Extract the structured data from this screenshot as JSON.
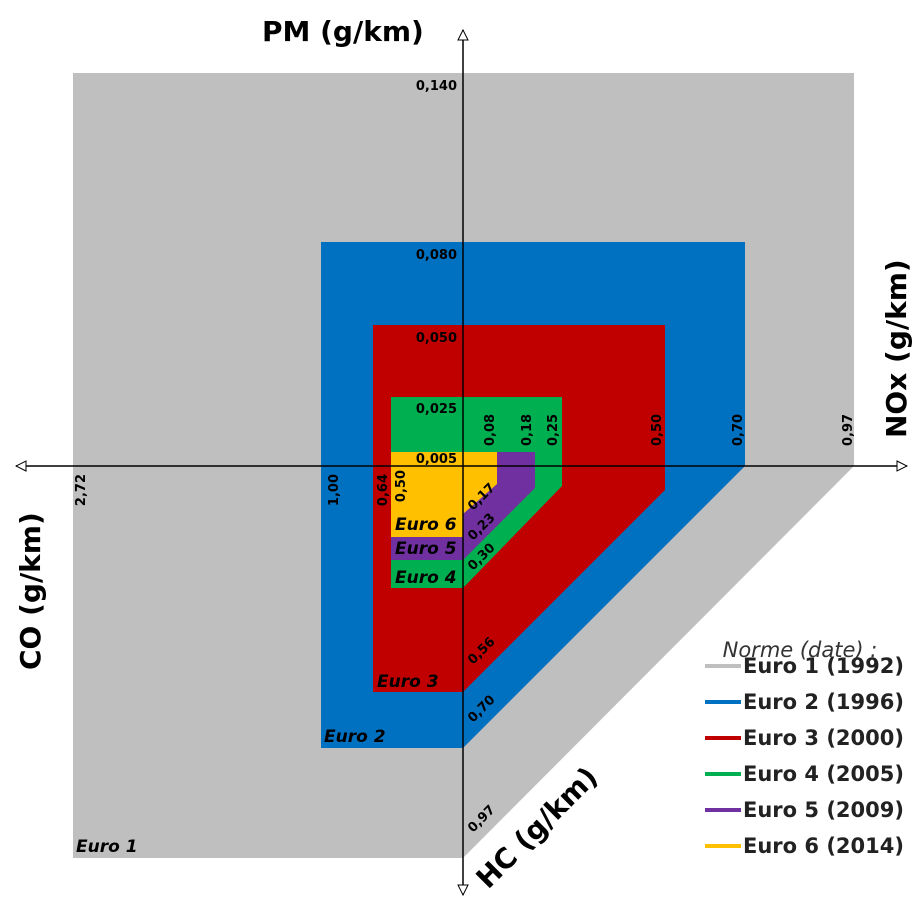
{
  "axes": {
    "pm": {
      "title": "PM (g/km)"
    },
    "nox": {
      "title": "NOx (g/km)"
    },
    "co": {
      "title": "CO (g/km)"
    },
    "hc": {
      "title": "HC (g/km)"
    }
  },
  "chart_data": {
    "type": "radar",
    "norms": [
      {
        "name": "Euro 1",
        "date": "1992",
        "color": "#bfbfbf",
        "values": {
          "pm": "0,140",
          "nox": "0,97",
          "co": "2,72",
          "hc": "0,97"
        }
      },
      {
        "name": "Euro 2",
        "date": "1996",
        "color": "#0070c0",
        "values": {
          "pm": "0,080",
          "nox": "0,70",
          "co": "1,00",
          "hc": "0,70"
        }
      },
      {
        "name": "Euro 3",
        "date": "2000",
        "color": "#c00000",
        "values": {
          "pm": "0,050",
          "nox": "0,50",
          "co": "0,64",
          "hc": "0,56"
        }
      },
      {
        "name": "Euro 4",
        "date": "2005",
        "color": "#00b050",
        "values": {
          "pm": "0,025",
          "nox": "0,25",
          "co": "0,50",
          "hc": "0,30"
        }
      },
      {
        "name": "Euro 5",
        "date": "2009",
        "color": "#7030a0",
        "values": {
          "pm": "0,005",
          "nox": "0,18",
          "co": "0,50",
          "hc": "0,23"
        }
      },
      {
        "name": "Euro 6",
        "date": "2014",
        "color": "#ffc000",
        "values": {
          "pm": "0,005",
          "nox": "0,08",
          "co": "0,50",
          "hc": "0,17"
        }
      }
    ],
    "legend_title": "Norme (date) :",
    "legend": [
      {
        "label": "Euro 1 (1992)",
        "color": "#bfbfbf"
      },
      {
        "label": "Euro 2 (1996)",
        "color": "#0070c0"
      },
      {
        "label": "Euro 3 (2000)",
        "color": "#c00000"
      },
      {
        "label": "Euro 4 (2005)",
        "color": "#00b050"
      },
      {
        "label": "Euro 5 (2009)",
        "color": "#7030a0"
      },
      {
        "label": "Euro 6 (2014)",
        "color": "#ffc000"
      }
    ]
  }
}
